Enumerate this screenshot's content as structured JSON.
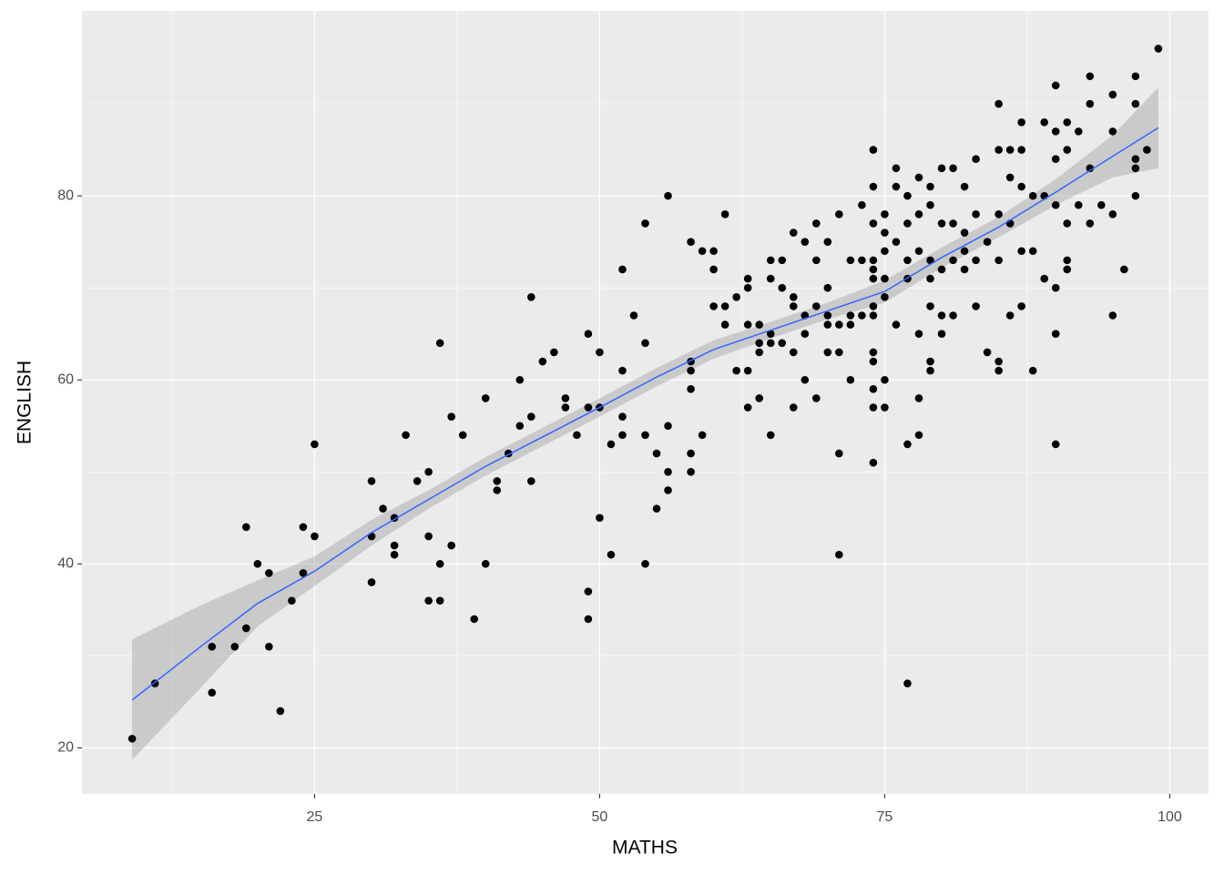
{
  "chart_data": {
    "type": "scatter",
    "x_label": "MATHS",
    "y_label": "ENGLISH",
    "x": [
      9,
      11,
      16,
      16,
      18,
      19,
      19,
      20,
      21,
      21,
      22,
      24,
      23,
      24,
      25,
      25,
      30,
      30,
      30,
      31,
      32,
      32,
      32,
      33,
      34,
      35,
      35,
      35,
      36,
      36,
      36,
      37,
      37,
      38,
      39,
      40,
      40,
      41,
      41,
      42,
      43,
      43,
      44,
      44,
      44,
      45,
      46,
      47,
      47,
      48,
      49,
      49,
      49,
      49,
      50,
      50,
      50,
      51,
      51,
      52,
      52,
      52,
      52,
      53,
      54,
      54,
      54,
      54,
      55,
      55,
      56,
      56,
      56,
      56,
      58,
      58,
      58,
      58,
      58,
      58,
      59,
      59,
      60,
      60,
      60,
      61,
      61,
      61,
      62,
      62,
      63,
      63,
      63,
      63,
      63,
      64,
      64,
      64,
      64,
      65,
      65,
      65,
      65,
      65,
      66,
      66,
      66,
      67,
      67,
      67,
      67,
      67,
      68,
      68,
      68,
      68,
      69,
      69,
      69,
      69,
      70,
      70,
      70,
      70,
      70,
      71,
      71,
      71,
      71,
      71,
      72,
      72,
      72,
      72,
      73,
      73,
      73,
      74,
      74,
      74,
      74,
      74,
      74,
      74,
      74,
      74,
      74,
      74,
      74,
      74,
      75,
      75,
      75,
      75,
      75,
      75,
      75,
      76,
      76,
      76,
      76,
      77,
      77,
      77,
      77,
      77,
      77,
      78,
      78,
      78,
      78,
      78,
      78,
      79,
      79,
      79,
      79,
      79,
      79,
      79,
      80,
      80,
      80,
      80,
      80,
      81,
      81,
      81,
      81,
      82,
      82,
      82,
      82,
      83,
      83,
      83,
      83,
      84,
      84,
      85,
      85,
      85,
      85,
      85,
      85,
      86,
      86,
      86,
      86,
      87,
      87,
      87,
      87,
      87,
      88,
      88,
      88,
      89,
      89,
      89,
      90,
      90,
      90,
      90,
      90,
      90,
      90,
      91,
      91,
      91,
      91,
      91,
      92,
      92,
      93,
      93,
      93,
      93,
      94,
      95,
      95,
      95,
      95,
      96,
      97,
      97,
      97,
      97,
      97,
      98,
      99
    ],
    "values": [
      21,
      27,
      31,
      26,
      31,
      33,
      44,
      40,
      39,
      31,
      24,
      44,
      36,
      39,
      53,
      43,
      49,
      43,
      38,
      46,
      45,
      42,
      41,
      54,
      49,
      50,
      43,
      36,
      64,
      40,
      36,
      56,
      42,
      54,
      34,
      58,
      40,
      49,
      48,
      52,
      55,
      60,
      69,
      56,
      49,
      62,
      63,
      58,
      57,
      54,
      65,
      57,
      37,
      34,
      63,
      57,
      45,
      53,
      41,
      72,
      61,
      56,
      54,
      67,
      77,
      64,
      54,
      40,
      52,
      46,
      55,
      50,
      48,
      80,
      75,
      62,
      61,
      59,
      52,
      50,
      54,
      74,
      74,
      72,
      68,
      78,
      68,
      66,
      69,
      61,
      71,
      70,
      66,
      61,
      57,
      66,
      64,
      63,
      58,
      73,
      71,
      65,
      64,
      54,
      73,
      70,
      64,
      76,
      69,
      68,
      63,
      57,
      75,
      67,
      65,
      60,
      77,
      73,
      68,
      58,
      75,
      70,
      67,
      66,
      63,
      78,
      66,
      63,
      52,
      41,
      73,
      67,
      66,
      60,
      79,
      73,
      67,
      85,
      81,
      77,
      73,
      72,
      71,
      68,
      67,
      63,
      62,
      59,
      57,
      51,
      78,
      76,
      74,
      71,
      69,
      60,
      57,
      83,
      81,
      75,
      66,
      80,
      77,
      73,
      71,
      53,
      27,
      82,
      78,
      74,
      65,
      58,
      54,
      81,
      79,
      73,
      71,
      68,
      62,
      61,
      83,
      77,
      72,
      67,
      65,
      83,
      77,
      73,
      67,
      81,
      76,
      74,
      72,
      84,
      78,
      73,
      68,
      75,
      63,
      90,
      85,
      78,
      73,
      62,
      61,
      85,
      82,
      77,
      67,
      88,
      85,
      81,
      74,
      68,
      80,
      74,
      61,
      88,
      80,
      71,
      92,
      87,
      84,
      79,
      70,
      65,
      53,
      88,
      85,
      77,
      73,
      72,
      87,
      79,
      93,
      90,
      83,
      77,
      79,
      91,
      87,
      78,
      67,
      72,
      93,
      90,
      84,
      83,
      80,
      85,
      96
    ],
    "point_color": "#000000",
    "smooth": {
      "x": [
        9,
        15,
        20,
        25,
        30,
        35,
        40,
        45,
        50,
        55,
        60,
        65,
        70,
        75,
        80,
        85,
        90,
        95,
        99
      ],
      "values": [
        25.2,
        31,
        35.7,
        39.2,
        43.4,
        47,
        50.6,
        53.8,
        57,
        60.3,
        63.3,
        65.4,
        67.5,
        69.6,
        73.3,
        76.6,
        80.4,
        84.3,
        87.4
      ],
      "lower": [
        18.7,
        26.5,
        33.2,
        37.6,
        42,
        46,
        49.6,
        52.8,
        56,
        59.3,
        62.3,
        64.5,
        66.6,
        68.4,
        72.2,
        75.5,
        79,
        82,
        83
      ],
      "upper": [
        31.8,
        35.5,
        38.2,
        40.8,
        44.8,
        48,
        51.6,
        54.8,
        58,
        61.3,
        64.3,
        66.3,
        68.4,
        70.8,
        74.4,
        77.7,
        81.8,
        86.6,
        91.8
      ],
      "color": "#3366ff",
      "band_color": "#999999"
    },
    "xlim": [
      4.6,
      103.4
    ],
    "ylim": [
      15,
      100.1
    ],
    "xticks": [
      25,
      50,
      75,
      100
    ],
    "yticks": [
      20,
      40,
      60,
      80
    ],
    "xminor": [
      12.5,
      37.5,
      62.5,
      87.5
    ],
    "yminor": [
      30,
      50,
      70,
      90
    ],
    "grid": true
  }
}
